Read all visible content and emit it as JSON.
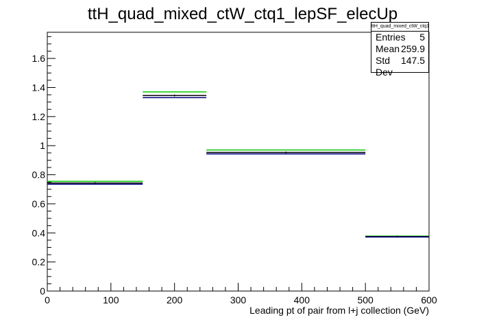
{
  "chart_data": {
    "type": "histogram",
    "title": "ttH_quad_mixed_ctW_ctq1_lepSF_elecUp",
    "xlabel": "Leading pt of pair from l+j collection (GeV)",
    "ylabel": "",
    "xlim": [
      0,
      600
    ],
    "ylim": [
      0,
      1.78
    ],
    "x_ticks": [
      0,
      100,
      200,
      300,
      400,
      500,
      600
    ],
    "y_ticks": [
      0,
      0.2,
      0.4,
      0.6,
      0.8,
      1,
      1.2,
      1.4,
      1.6
    ],
    "bin_edges": [
      0,
      150,
      250,
      500,
      600
    ],
    "grid": false,
    "series": [
      {
        "color": "#00cc00",
        "values": [
          0.755,
          1.37,
          0.97,
          0.378
        ]
      },
      {
        "color": "#000000",
        "values": [
          0.743,
          1.345,
          0.953,
          0.375
        ]
      },
      {
        "color": "#000080",
        "values": [
          0.735,
          1.33,
          0.943,
          0.372
        ]
      }
    ],
    "stats": {
      "title": "ttH_quad_mixed_ctW_ctq1_lepSF_elecUp",
      "entries_label": "Entries",
      "entries": "5",
      "mean_label": "Mean",
      "mean": "259.9",
      "std_label": "Std Dev",
      "std": "147.5"
    }
  }
}
